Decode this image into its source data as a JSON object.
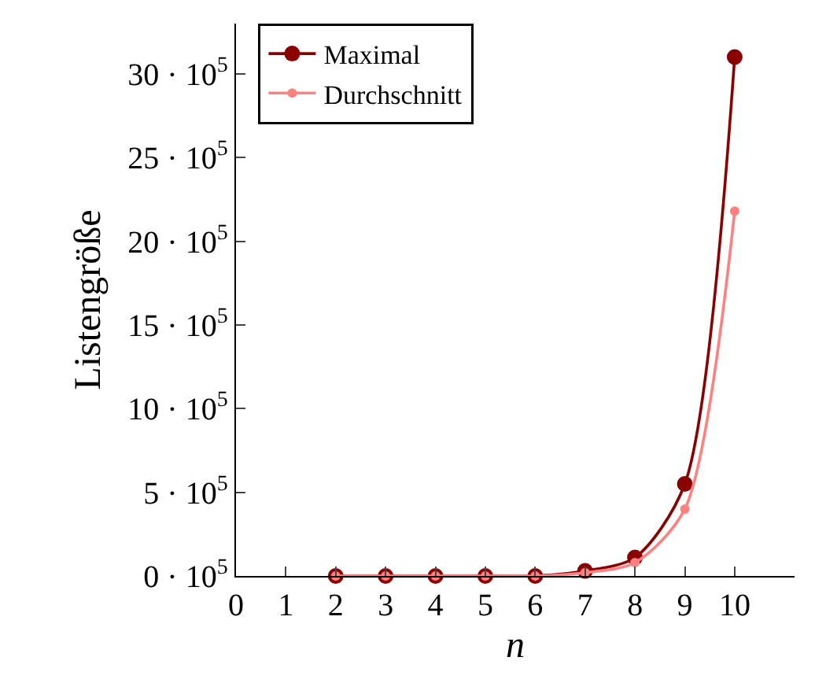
{
  "chart_data": {
    "type": "line",
    "xlabel": "n",
    "ylabel": "Listengröße",
    "x": [
      2,
      3,
      4,
      5,
      6,
      7,
      8,
      9,
      10
    ],
    "series": [
      {
        "name": "Maximal",
        "color": "#8b0000",
        "values": [
          0,
          0,
          0,
          0,
          0,
          30000,
          110000,
          550000,
          3100000
        ]
      },
      {
        "name": "Durchschnitt",
        "color": "#ff8080",
        "values": [
          0,
          0,
          0,
          0,
          0,
          20000,
          80000,
          400000,
          2180000
        ]
      }
    ],
    "xlim": [
      0,
      11.2
    ],
    "xticks": [
      0,
      1,
      2,
      3,
      4,
      5,
      6,
      7,
      8,
      9,
      10
    ],
    "ylim": [
      0,
      3300000
    ],
    "yticks": [
      {
        "value": 0,
        "label": "0 · 10$^{5}$"
      },
      {
        "value": 500000,
        "label": "5 · 10$^{5}$"
      },
      {
        "value": 1000000,
        "label": "10 · 10$^{5}$"
      },
      {
        "value": 1500000,
        "label": "15 · 10$^{5}$"
      },
      {
        "value": 2000000,
        "label": "20 · 10$^{5}$"
      },
      {
        "value": 2500000,
        "label": "25 · 10$^{5}$"
      },
      {
        "value": 3000000,
        "label": "30 · 10$^{5}$"
      }
    ],
    "grid": false,
    "legend": "top left",
    "marker": "circle",
    "line_style": "solid"
  }
}
